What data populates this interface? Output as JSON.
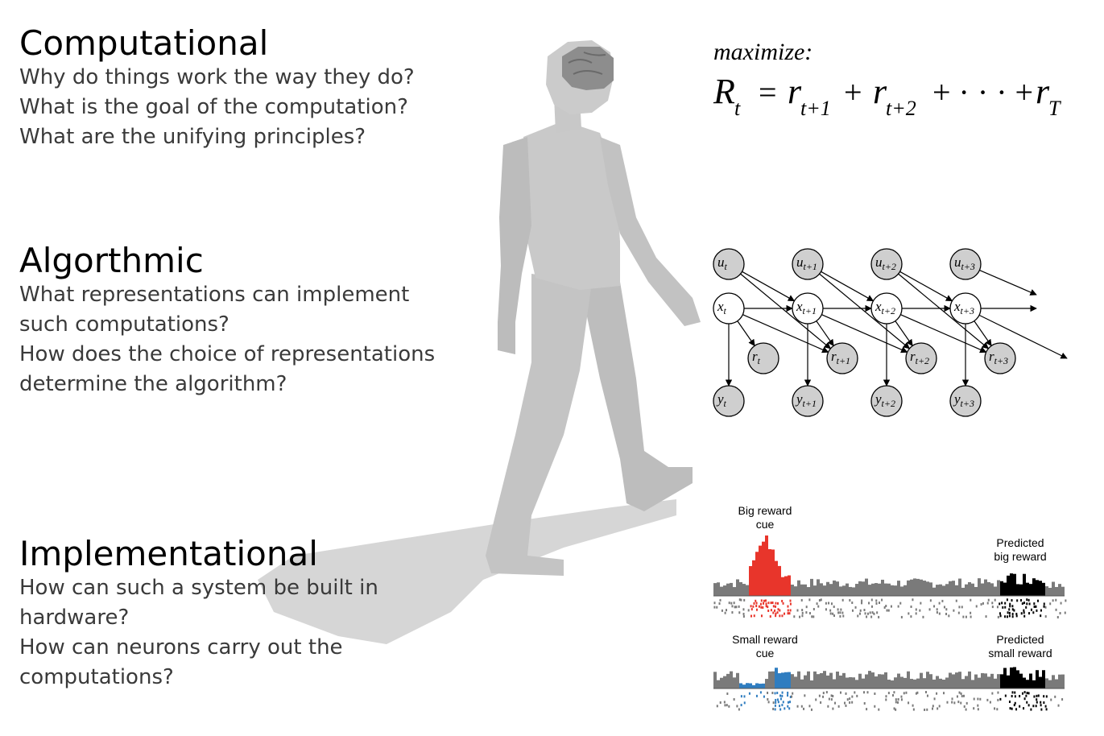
{
  "sections": {
    "computational": {
      "heading": "Computational",
      "lines": [
        "Why do things work the way they do?",
        "What is the goal of the computation?",
        "What are the unifying principles?"
      ]
    },
    "algorithmic": {
      "heading": "Algorthmic",
      "lines": [
        "What representations can implement",
        "such computations?",
        "How does the choice of representations",
        "determine the algorithm?"
      ]
    },
    "implementational": {
      "heading": "Implementational",
      "lines": [
        "How can such a system be built in",
        "hardware?",
        "How can neurons carry out the",
        "computations?"
      ]
    }
  },
  "formula": {
    "label": "maximize:",
    "R": "R",
    "R_sub": "t",
    "eq": "=",
    "r": "r",
    "terms": [
      {
        "sub": "t+1"
      },
      {
        "sub": "t+2"
      }
    ],
    "plus": "+",
    "cdots": "+ · · · +",
    "last_sub": "T"
  },
  "graph": {
    "u_nodes": [
      "u",
      "u",
      "u",
      "u"
    ],
    "u_subs": [
      "t",
      "t+1",
      "t+2",
      "t+3"
    ],
    "x_nodes": [
      "x",
      "x",
      "x",
      "x"
    ],
    "x_subs": [
      "t",
      "t+1",
      "t+2",
      "t+3"
    ],
    "r_nodes": [
      "r",
      "r",
      "r",
      "r"
    ],
    "r_subs": [
      "t",
      "t+1",
      "t+2",
      "t+3"
    ],
    "y_nodes": [
      "y",
      "y",
      "y",
      "y"
    ],
    "y_subs": [
      "t",
      "t+1",
      "t+2",
      "t+3"
    ]
  },
  "neural": {
    "big_cue_label": [
      "Big reward",
      "cue"
    ],
    "big_pred_label": [
      "Predicted",
      "big reward"
    ],
    "small_cue_label": [
      "Small reward",
      "cue"
    ],
    "small_pred_label": [
      "Predicted",
      "small reward"
    ],
    "colors": {
      "big": "#e8352b",
      "small": "#2f7dc0",
      "base": "#7a7a7a",
      "predicted": "#000000"
    }
  }
}
